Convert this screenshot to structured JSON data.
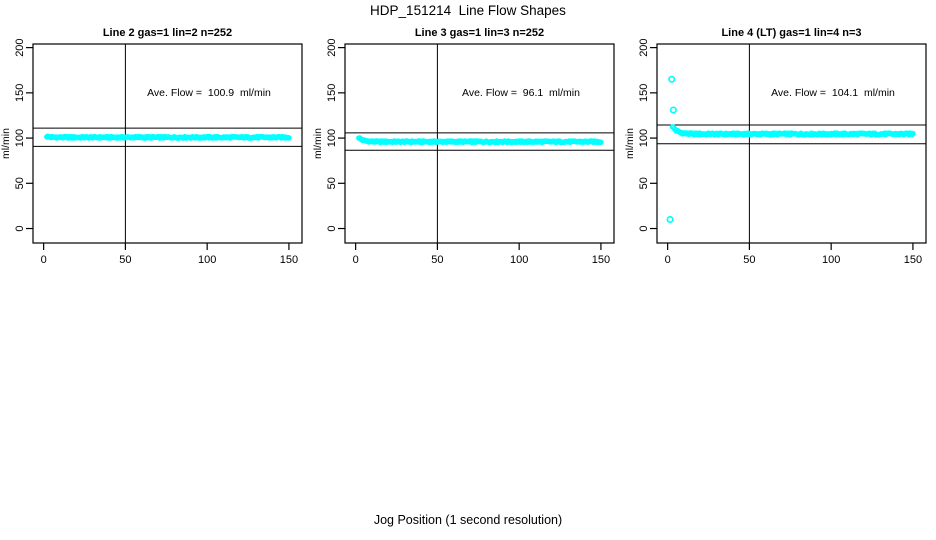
{
  "chart_data": {
    "type": "scatter",
    "title": "HDP_151214  Line Flow Shapes",
    "xlabel": "Jog Position (1 second resolution)",
    "ylabel": "ml/min",
    "x_ticks": [
      0,
      50,
      100,
      150
    ],
    "y_ticks": [
      0,
      50,
      100,
      150,
      200
    ],
    "xlim": [
      -6.5,
      158
    ],
    "ylim": [
      -16,
      204
    ],
    "grid": false,
    "legend": "none",
    "marker_color": "#00FFFF",
    "axis_color": "#000000",
    "panels": [
      {
        "title": "Line 2 gas=1 lin=2 n=252",
        "ave_flow_label": "Ave. Flow =  100.9  ml/min",
        "ave_flow": 100.9,
        "n": 252,
        "ref_lines_y": [
          111.0,
          90.8
        ],
        "vline_x": 50,
        "band": {
          "x_start": 2,
          "x_end": 150,
          "n": 252,
          "y_start": 101.8,
          "y_settle": 100.8,
          "settle_x": 8,
          "jitter": 0.8
        },
        "outliers": []
      },
      {
        "title": "Line 3 gas=1 lin=3 n=252",
        "ave_flow_label": "Ave. Flow =  96.1  ml/min",
        "ave_flow": 96.1,
        "n": 252,
        "ref_lines_y": [
          105.7,
          86.5
        ],
        "vline_x": 50,
        "band": {
          "x_start": 2,
          "x_end": 150,
          "n": 252,
          "y_start": 100.5,
          "y_settle": 96.0,
          "settle_x": 10,
          "jitter": 0.8
        },
        "outliers": []
      },
      {
        "title": "Line 4 (LT) gas=1 lin=4 n=3",
        "ave_flow_label": "Ave. Flow =  104.1  ml/min",
        "ave_flow": 104.1,
        "n": 3,
        "ref_lines_y": [
          114.5,
          93.7
        ],
        "vline_x": 50,
        "band": {
          "x_start": 3,
          "x_end": 150,
          "n": 248,
          "y_start": 113.0,
          "y_settle": 104.5,
          "settle_x": 12,
          "jitter": 1.0
        },
        "outliers": [
          [
            1.5,
            10
          ],
          [
            2.5,
            165
          ],
          [
            3.5,
            131
          ]
        ]
      }
    ]
  }
}
